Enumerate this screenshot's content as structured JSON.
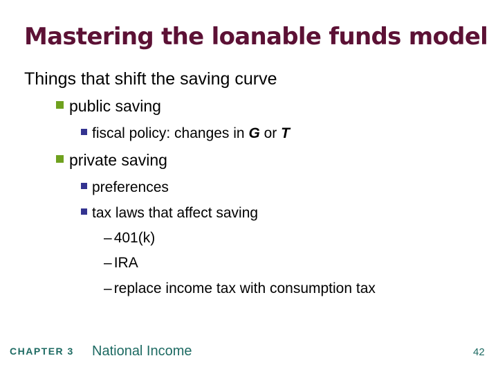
{
  "slide": {
    "title": "Mastering the loanable funds model",
    "heading": "Things that shift the saving curve",
    "bullets": [
      {
        "level": 1,
        "marker": "green-square",
        "segments": [
          {
            "text": "public saving"
          }
        ]
      },
      {
        "level": 2,
        "marker": "blue-square",
        "segments": [
          {
            "text": "fiscal policy:  changes in "
          },
          {
            "text": "G",
            "bold_italic": true
          },
          {
            "text": " or "
          },
          {
            "text": "T",
            "bold_italic": true
          }
        ]
      },
      {
        "level": 1,
        "marker": "green-square",
        "segments": [
          {
            "text": "private saving"
          }
        ]
      },
      {
        "level": 2,
        "marker": "blue-square",
        "segments": [
          {
            "text": "preferences"
          }
        ]
      },
      {
        "level": 2,
        "marker": "blue-square",
        "segments": [
          {
            "text": "tax laws that affect saving"
          }
        ]
      },
      {
        "level": 3,
        "marker": "dash",
        "dash_glyph": "–",
        "segments": [
          {
            "text": "401(k)"
          }
        ]
      },
      {
        "level": 3,
        "marker": "dash",
        "dash_glyph": "–",
        "segments": [
          {
            "text": "IRA"
          }
        ]
      },
      {
        "level": 3,
        "marker": "dash",
        "dash_glyph": "–",
        "segments": [
          {
            "text": "replace income tax with consumption tax"
          }
        ]
      }
    ],
    "footer": {
      "chapter": "CHAPTER 3",
      "course": "National Income",
      "page_number": "42"
    },
    "colors": {
      "title": "#5C1135",
      "body_text": "#000000",
      "bullet_green": "#6FA11E",
      "bullet_blue": "#333390",
      "footer_teal": "#1D6A62"
    }
  }
}
